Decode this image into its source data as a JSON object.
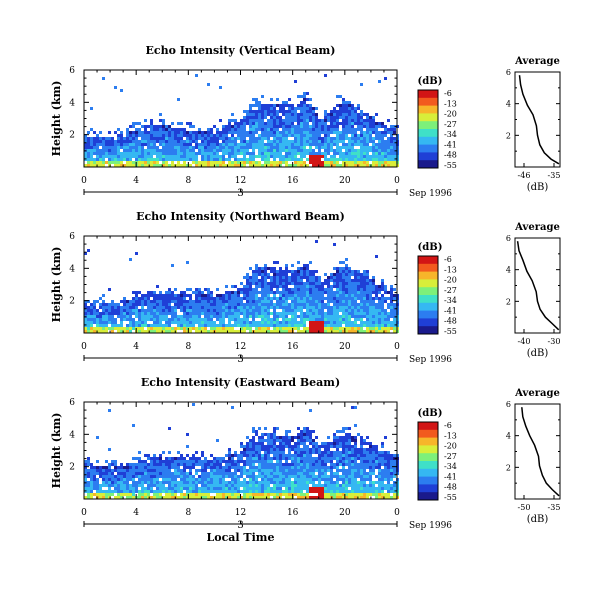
{
  "shared": {
    "ylabel": "Height (km)",
    "xlabel": "Local Time",
    "x_ticks": [
      "0",
      "4",
      "8",
      "12",
      "16",
      "20",
      "0"
    ],
    "y_ticks": [
      "6",
      "4",
      "2"
    ],
    "day_label": "3",
    "date_label": "Sep 1996",
    "cbar_title": "(dB)",
    "cbar_ticks": [
      "-6",
      "-13",
      "-20",
      "-27",
      "-34",
      "-41",
      "-48",
      "-55"
    ],
    "avg_title": "Average",
    "avg_xlabel": "(dB)",
    "avg_y_ticks": [
      "6",
      "4",
      "2"
    ],
    "colors": {
      "colormap": [
        "#1a1a8c",
        "#1f3fd6",
        "#2c7df0",
        "#35b8f2",
        "#3fe0c8",
        "#7df07a",
        "#d8ee3a",
        "#f7b52a",
        "#f25a1e",
        "#d21515"
      ],
      "axes": "#000000",
      "background": "#ffffff"
    }
  },
  "chart_data": [
    {
      "type": "heatmap",
      "title": "Echo Intensity (Vertical Beam)",
      "xlabel": "",
      "ylabel": "Height (km)",
      "xlim": [
        0,
        24
      ],
      "ylim": [
        0,
        6
      ],
      "colorbar_range_db": [
        -55,
        -6
      ],
      "cloud_tops_km": [
        [
          0,
          2.0
        ],
        [
          2,
          1.9
        ],
        [
          5,
          2.8
        ],
        [
          8,
          2.4
        ],
        [
          10,
          2.2
        ],
        [
          12,
          3.0
        ],
        [
          13,
          4.1
        ],
        [
          14,
          4.0
        ],
        [
          16,
          4.0
        ],
        [
          17,
          4.4
        ],
        [
          18,
          3.0
        ],
        [
          20,
          4.2
        ],
        [
          22,
          3.2
        ],
        [
          24,
          2.2
        ]
      ],
      "averages": [
        {
          "title": "Average",
          "xlabel": "(dB)",
          "x_ticks": [
            "-46",
            "-35"
          ],
          "xlim": [
            -52,
            -32
          ],
          "ylim": [
            0,
            6
          ],
          "profile": [
            [
              -32.5,
              0.2
            ],
            [
              -36,
              0.5
            ],
            [
              -39,
              0.9
            ],
            [
              -41,
              1.4
            ],
            [
              -42,
              2.0
            ],
            [
              -42.5,
              2.6
            ],
            [
              -44,
              3.3
            ],
            [
              -46.5,
              3.9
            ],
            [
              -48.5,
              4.6
            ],
            [
              -49.5,
              5.2
            ],
            [
              -50,
              5.8
            ]
          ]
        }
      ]
    },
    {
      "type": "heatmap",
      "title": "Echo Intensity (Northward Beam)",
      "xlabel": "",
      "ylabel": "Height (km)",
      "xlim": [
        0,
        24
      ],
      "ylim": [
        0,
        6
      ],
      "colorbar_range_db": [
        -55,
        -6
      ],
      "cloud_tops_km": [
        [
          0,
          2.1
        ],
        [
          2,
          1.8
        ],
        [
          5,
          2.6
        ],
        [
          8,
          2.5
        ],
        [
          10,
          2.4
        ],
        [
          12,
          2.9
        ],
        [
          13,
          4.2
        ],
        [
          14,
          4.1
        ],
        [
          16,
          4.0
        ],
        [
          17,
          4.4
        ],
        [
          18,
          3.2
        ],
        [
          20,
          4.3
        ],
        [
          22,
          3.4
        ],
        [
          24,
          2.4
        ]
      ],
      "averages": [
        {
          "title": "Average",
          "xlabel": "(dB)",
          "x_ticks": [
            "-40",
            "-30"
          ],
          "xlim": [
            -45,
            -28
          ],
          "ylim": [
            0,
            6
          ],
          "profile": [
            [
              -28.5,
              0.2
            ],
            [
              -31,
              0.6
            ],
            [
              -33.5,
              1.0
            ],
            [
              -35.5,
              1.5
            ],
            [
              -36.5,
              2.0
            ],
            [
              -37,
              2.6
            ],
            [
              -38.5,
              3.3
            ],
            [
              -40.5,
              3.9
            ],
            [
              -42,
              4.6
            ],
            [
              -43.5,
              5.2
            ],
            [
              -44,
              5.8
            ]
          ]
        }
      ]
    },
    {
      "type": "heatmap",
      "title": "Echo Intensity (Eastward Beam)",
      "xlabel": "Local Time",
      "ylabel": "Height (km)",
      "xlim": [
        0,
        24
      ],
      "ylim": [
        0,
        6
      ],
      "colorbar_range_db": [
        -55,
        -6
      ],
      "cloud_tops_km": [
        [
          0,
          2.3
        ],
        [
          2,
          2.0
        ],
        [
          5,
          2.6
        ],
        [
          8,
          2.7
        ],
        [
          10,
          2.6
        ],
        [
          12,
          3.0
        ],
        [
          13,
          4.3
        ],
        [
          14,
          4.1
        ],
        [
          16,
          4.0
        ],
        [
          17,
          4.5
        ],
        [
          18,
          3.3
        ],
        [
          20,
          4.2
        ],
        [
          22,
          3.5
        ],
        [
          24,
          2.6
        ]
      ],
      "averages": [
        {
          "title": "Average",
          "xlabel": "(dB)",
          "x_ticks": [
            "-50",
            "-35"
          ],
          "xlim": [
            -55,
            -32
          ],
          "ylim": [
            0,
            6
          ],
          "profile": [
            [
              -32.5,
              0.2
            ],
            [
              -36,
              0.6
            ],
            [
              -39,
              1.0
            ],
            [
              -41,
              1.5
            ],
            [
              -42.5,
              2.1
            ],
            [
              -43,
              2.7
            ],
            [
              -45,
              3.4
            ],
            [
              -47.5,
              4.0
            ],
            [
              -49.5,
              4.6
            ],
            [
              -51,
              5.2
            ],
            [
              -51.5,
              5.8
            ]
          ]
        }
      ]
    }
  ]
}
